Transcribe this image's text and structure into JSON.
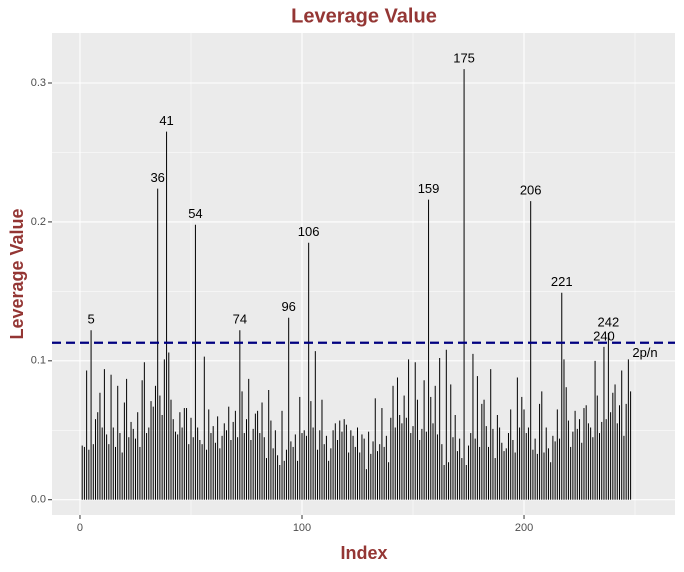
{
  "chart_data": {
    "type": "spike",
    "title": "Leverage Value",
    "x_label": "Index",
    "y_label": "Leverage Value",
    "x": [
      1,
      2,
      3,
      4,
      5,
      6,
      7,
      8,
      9,
      10,
      11,
      12,
      13,
      14,
      15,
      16,
      17,
      18,
      19,
      20,
      21,
      22,
      23,
      24,
      25,
      26,
      27,
      28,
      29,
      30,
      31,
      32,
      33,
      34,
      35,
      36,
      37,
      38,
      39,
      40,
      41,
      42,
      43,
      44,
      45,
      46,
      47,
      48,
      49,
      50,
      51,
      52,
      53,
      54,
      55,
      56,
      57,
      58,
      59,
      60,
      61,
      62,
      63,
      64,
      65,
      66,
      67,
      68,
      69,
      70,
      71,
      72,
      73,
      74,
      75,
      76,
      77,
      78,
      79,
      80,
      81,
      82,
      83,
      84,
      85,
      86,
      87,
      88,
      89,
      90,
      91,
      92,
      93,
      94,
      95,
      96,
      97,
      98,
      99,
      100,
      101,
      102,
      103,
      104,
      105,
      106,
      107,
      108,
      109,
      110,
      111,
      112,
      113,
      114,
      115,
      116,
      117,
      118,
      119,
      120,
      121,
      122,
      123,
      124,
      125,
      126,
      127,
      128,
      129,
      130,
      131,
      132,
      133,
      134,
      135,
      136,
      137,
      138,
      139,
      140,
      141,
      142,
      143,
      144,
      145,
      146,
      147,
      148,
      149,
      150,
      151,
      152,
      153,
      154,
      155,
      156,
      157,
      158,
      159,
      160,
      161,
      162,
      163,
      164,
      165,
      166,
      167,
      168,
      169,
      170,
      171,
      172,
      173,
      174,
      175,
      176,
      177,
      178,
      179,
      180,
      181,
      182,
      183,
      184,
      185,
      186,
      187,
      188,
      189,
      190,
      191,
      192,
      193,
      194,
      195,
      196,
      197,
      198,
      199,
      200,
      201,
      202,
      203,
      204,
      205,
      206,
      207,
      208,
      209,
      210,
      211,
      212,
      213,
      214,
      215,
      216,
      217,
      218,
      219,
      220,
      221,
      222,
      223,
      224,
      225,
      226,
      227,
      228,
      229,
      230,
      231,
      232,
      233,
      234,
      235,
      236,
      237,
      238,
      239,
      240,
      241,
      242,
      243,
      244,
      245,
      246,
      247,
      248
    ],
    "values": [
      0.039,
      0.038,
      0.093,
      0.036,
      0.122,
      0.04,
      0.058,
      0.063,
      0.077,
      0.052,
      0.094,
      0.047,
      0.04,
      0.09,
      0.052,
      0.038,
      0.082,
      0.048,
      0.034,
      0.07,
      0.087,
      0.045,
      0.056,
      0.051,
      0.044,
      0.063,
      0.038,
      0.086,
      0.099,
      0.048,
      0.052,
      0.071,
      0.067,
      0.082,
      0.224,
      0.075,
      0.061,
      0.101,
      0.265,
      0.106,
      0.072,
      0.058,
      0.049,
      0.047,
      0.063,
      0.052,
      0.066,
      0.066,
      0.04,
      0.059,
      0.045,
      0.198,
      0.052,
      0.043,
      0.04,
      0.103,
      0.036,
      0.065,
      0.048,
      0.053,
      0.041,
      0.06,
      0.037,
      0.046,
      0.055,
      0.05,
      0.067,
      0.043,
      0.056,
      0.064,
      0.045,
      0.122,
      0.078,
      0.048,
      0.058,
      0.087,
      0.043,
      0.051,
      0.062,
      0.064,
      0.048,
      0.07,
      0.045,
      0.03,
      0.079,
      0.057,
      0.037,
      0.05,
      0.032,
      0.025,
      0.064,
      0.028,
      0.036,
      0.131,
      0.042,
      0.038,
      0.047,
      0.028,
      0.074,
      0.048,
      0.05,
      0.046,
      0.185,
      0.071,
      0.052,
      0.107,
      0.036,
      0.05,
      0.072,
      0.04,
      0.046,
      0.028,
      0.037,
      0.05,
      0.055,
      0.043,
      0.057,
      0.049,
      0.058,
      0.054,
      0.034,
      0.05,
      0.046,
      0.038,
      0.052,
      0.034,
      0.047,
      0.044,
      0.022,
      0.049,
      0.033,
      0.042,
      0.073,
      0.035,
      0.04,
      0.066,
      0.038,
      0.046,
      0.027,
      0.059,
      0.082,
      0.052,
      0.088,
      0.061,
      0.055,
      0.075,
      0.059,
      0.101,
      0.048,
      0.053,
      0.099,
      0.072,
      0.043,
      0.051,
      0.086,
      0.049,
      0.216,
      0.074,
      0.055,
      0.082,
      0.047,
      0.102,
      0.04,
      0.025,
      0.108,
      0.027,
      0.083,
      0.045,
      0.061,
      0.035,
      0.044,
      0.03,
      0.31,
      0.025,
      0.039,
      0.048,
      0.105,
      0.044,
      0.089,
      0.038,
      0.069,
      0.072,
      0.053,
      0.038,
      0.094,
      0.051,
      0.03,
      0.061,
      0.052,
      0.041,
      0.035,
      0.037,
      0.048,
      0.065,
      0.043,
      0.034,
      0.088,
      0.052,
      0.074,
      0.065,
      0.048,
      0.052,
      0.215,
      0.036,
      0.044,
      0.033,
      0.069,
      0.078,
      0.034,
      0.052,
      0.037,
      0.027,
      0.046,
      0.042,
      0.065,
      0.044,
      0.149,
      0.101,
      0.081,
      0.057,
      0.038,
      0.049,
      0.064,
      0.051,
      0.058,
      0.041,
      0.066,
      0.068,
      0.055,
      0.052,
      0.045,
      0.1,
      0.075,
      0.048,
      0.056,
      0.11,
      0.058,
      0.12,
      0.063,
      0.077,
      0.083,
      0.055,
      0.068,
      0.093,
      0.046,
      0.069,
      0.101,
      0.078
    ],
    "color": "#000000",
    "xlim": [
      -12.6,
      268
    ],
    "ylim": [
      -0.011,
      0.336
    ],
    "xticks": [
      0,
      100,
      200
    ],
    "yticks": [
      {
        "value": 0,
        "label": "0.0"
      },
      0.1,
      0.2,
      0.3
    ],
    "x_minor_ticks": [
      50,
      150,
      250
    ],
    "y_minor_ticks": [
      0.05,
      0.15,
      0.25
    ],
    "grid": true,
    "threshold": {
      "y": 0.113,
      "color": "#000080",
      "label": "2p/n"
    },
    "annotations": [
      {
        "x": 5,
        "y": 0.122,
        "label": "5"
      },
      {
        "x": 35,
        "y": 0.224,
        "label": "36"
      },
      {
        "x": 39,
        "y": 0.265,
        "label": "41"
      },
      {
        "x": 52,
        "y": 0.198,
        "label": "54"
      },
      {
        "x": 72,
        "y": 0.122,
        "label": "74"
      },
      {
        "x": 94,
        "y": 0.131,
        "label": "96"
      },
      {
        "x": 103,
        "y": 0.185,
        "label": "106"
      },
      {
        "x": 157,
        "y": 0.216,
        "label": "159"
      },
      {
        "x": 173,
        "y": 0.31,
        "label": "175"
      },
      {
        "x": 203,
        "y": 0.215,
        "label": "206"
      },
      {
        "x": 217,
        "y": 0.149,
        "label": "221"
      },
      {
        "x": 236,
        "y": 0.11,
        "label": "240"
      },
      {
        "x": 238,
        "y": 0.12,
        "label": "242"
      }
    ]
  }
}
